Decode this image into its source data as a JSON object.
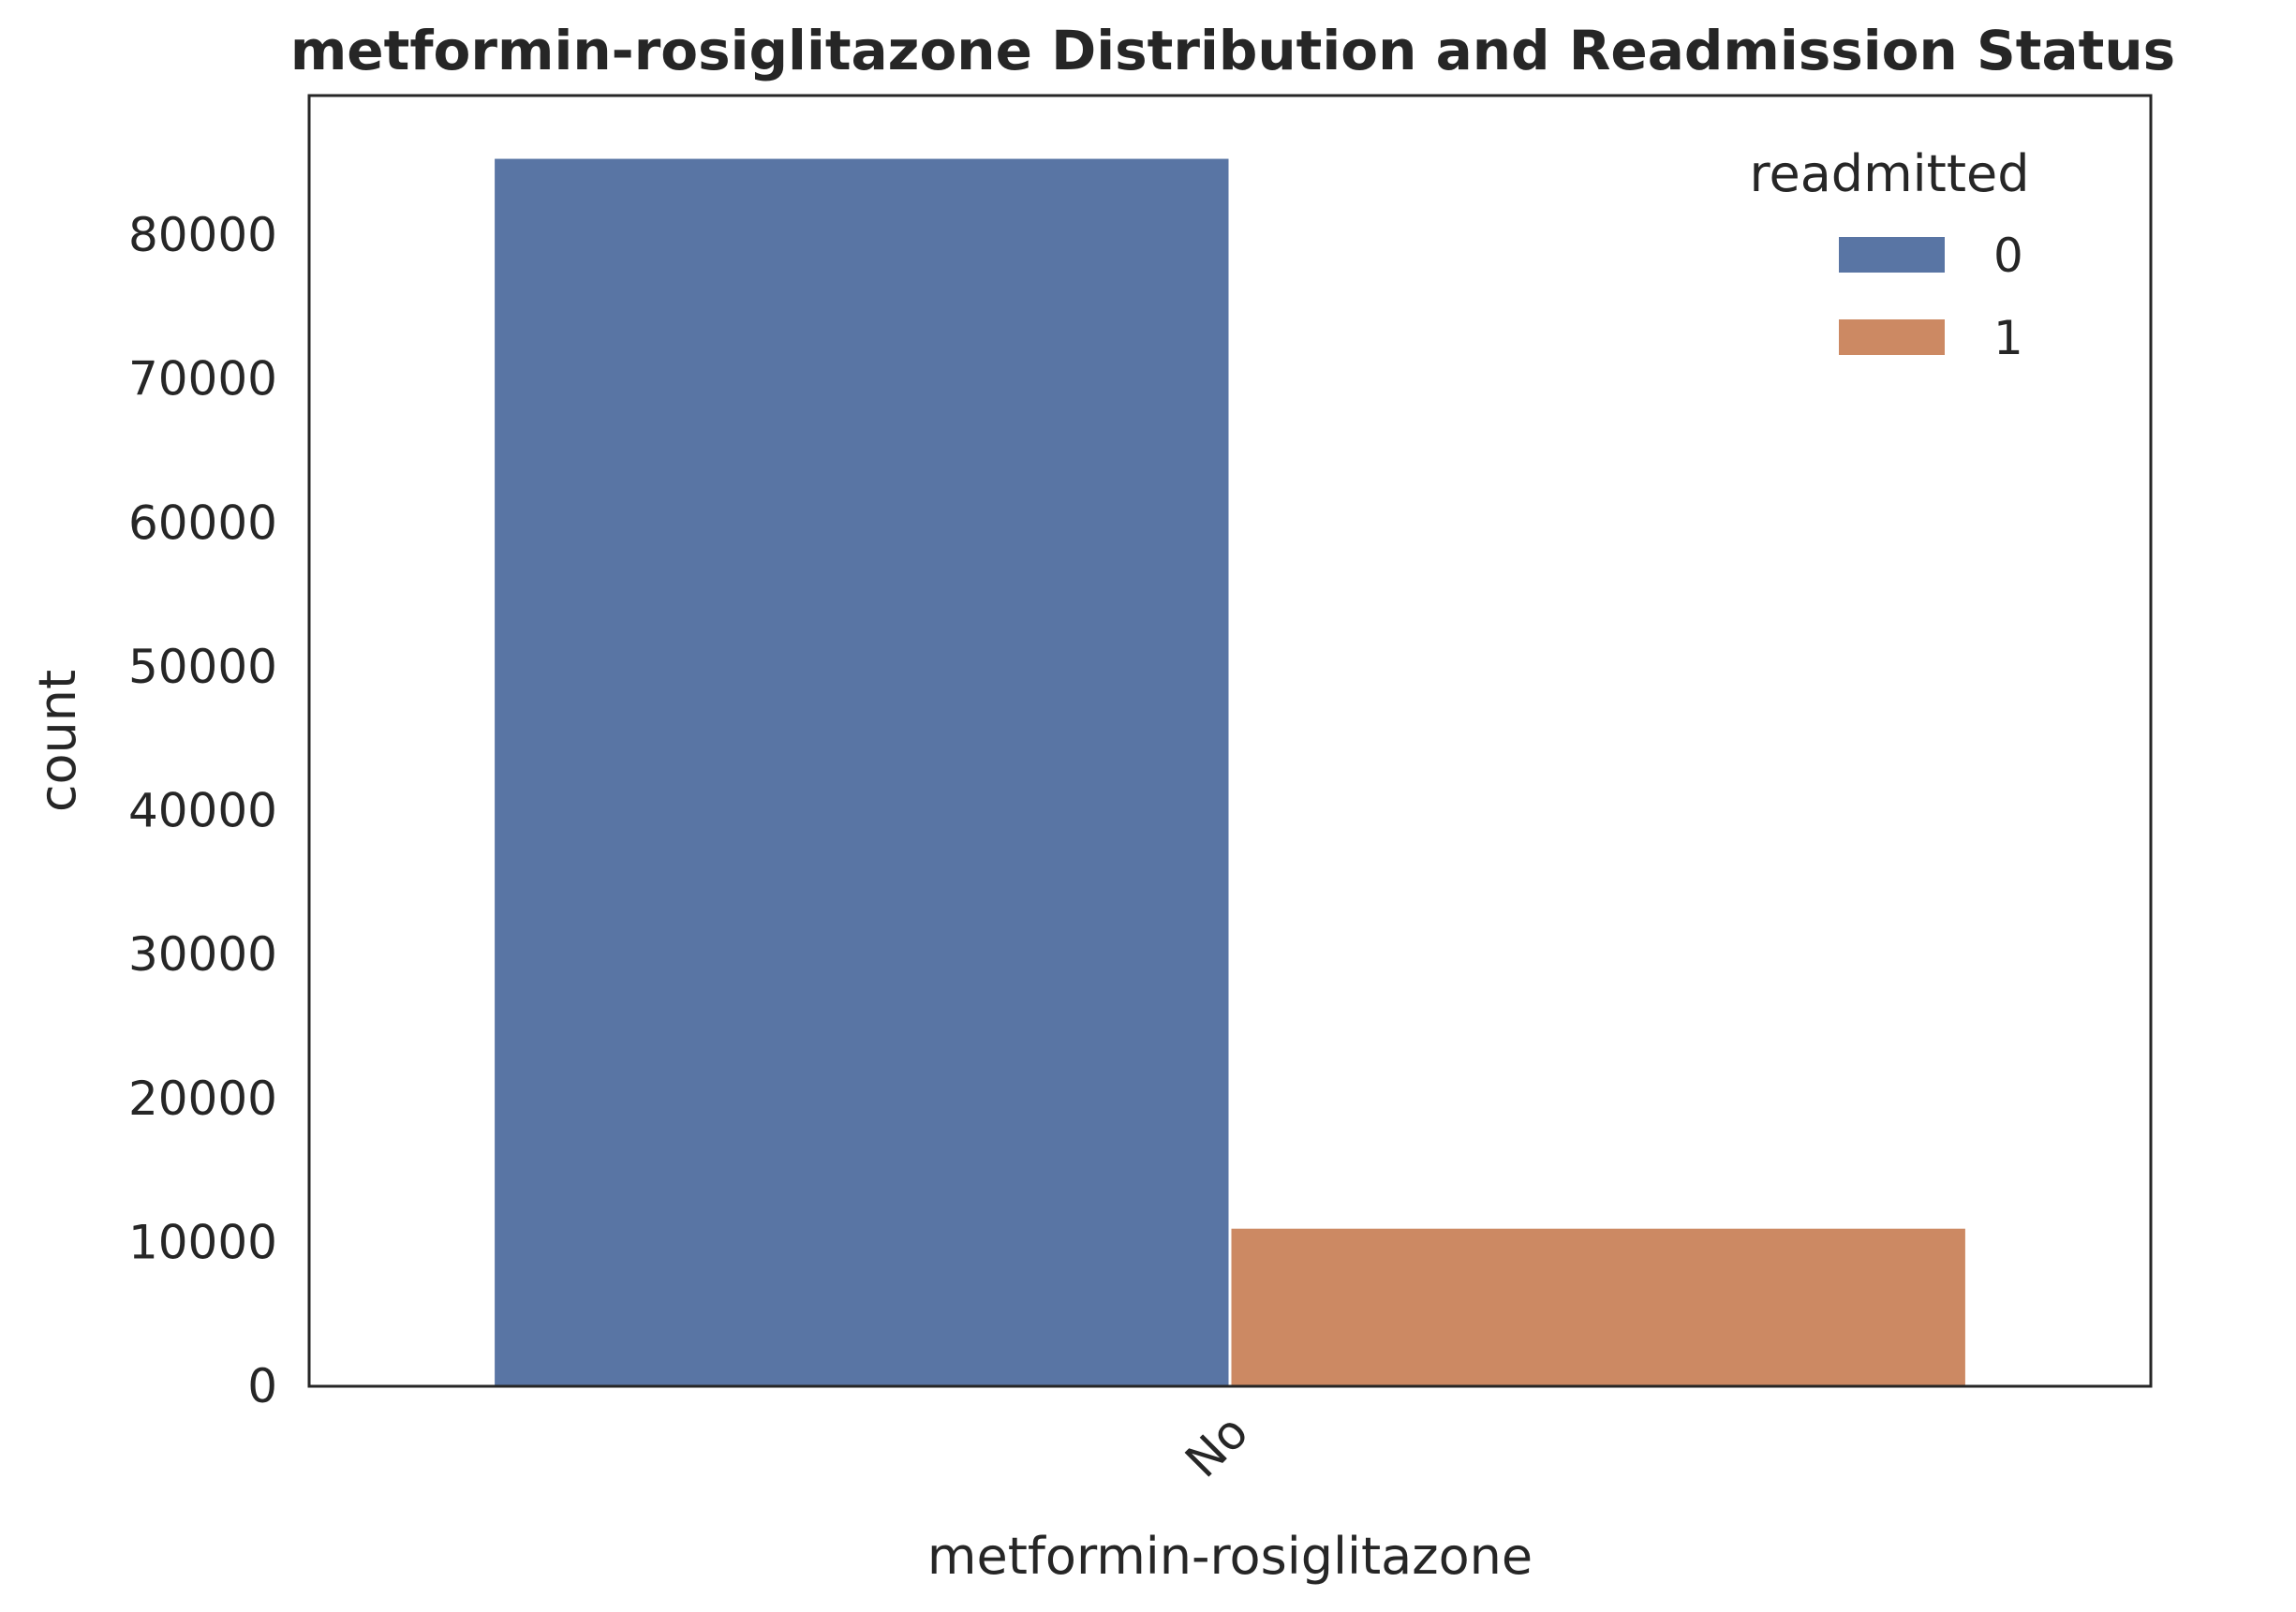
{
  "chart_data": {
    "type": "bar",
    "title": "metformin-rosiglitazone Distribution and Readmission Status",
    "xlabel": "metformin-rosiglitazone",
    "ylabel": "count",
    "categories": [
      "No"
    ],
    "series": [
      {
        "name": "0",
        "color": "#5975a4",
        "values": [
          85400
        ]
      },
      {
        "name": "1",
        "color": "#cc8963",
        "values": [
          11050
        ]
      }
    ],
    "ylim": [
      0,
      89700
    ],
    "yticks": [
      0,
      10000,
      20000,
      30000,
      40000,
      50000,
      60000,
      70000,
      80000
    ],
    "ytick_labels": [
      "0",
      "10000",
      "20000",
      "30000",
      "40000",
      "50000",
      "60000",
      "70000",
      "80000"
    ],
    "xtick_rotation": -45,
    "grid": false,
    "legend": {
      "title": "readmitted",
      "placement": "upper-right",
      "entries": [
        "0",
        "1"
      ]
    }
  }
}
